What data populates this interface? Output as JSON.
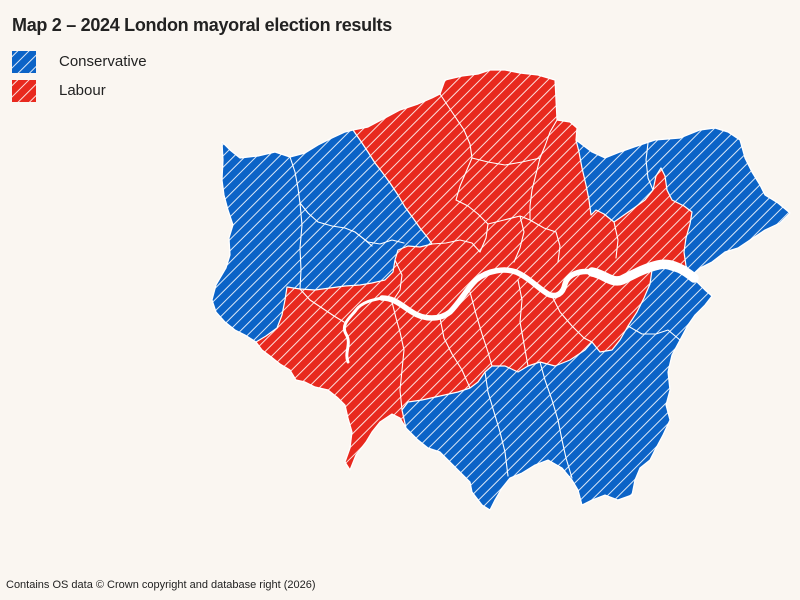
{
  "title": "Map 2 – 2024 London mayoral election results",
  "legend": [
    {
      "label": "Conservative",
      "color": "#0b63c7"
    },
    {
      "label": "Labour",
      "color": "#e8291e"
    }
  ],
  "footer": "Contains OS data © Crown copyright and database right (2026)",
  "colors": {
    "background": "#faf6f1",
    "text": "#222222",
    "hatch": "#ffffff",
    "boundary": "#ffffff",
    "river": "#ffffff"
  }
}
